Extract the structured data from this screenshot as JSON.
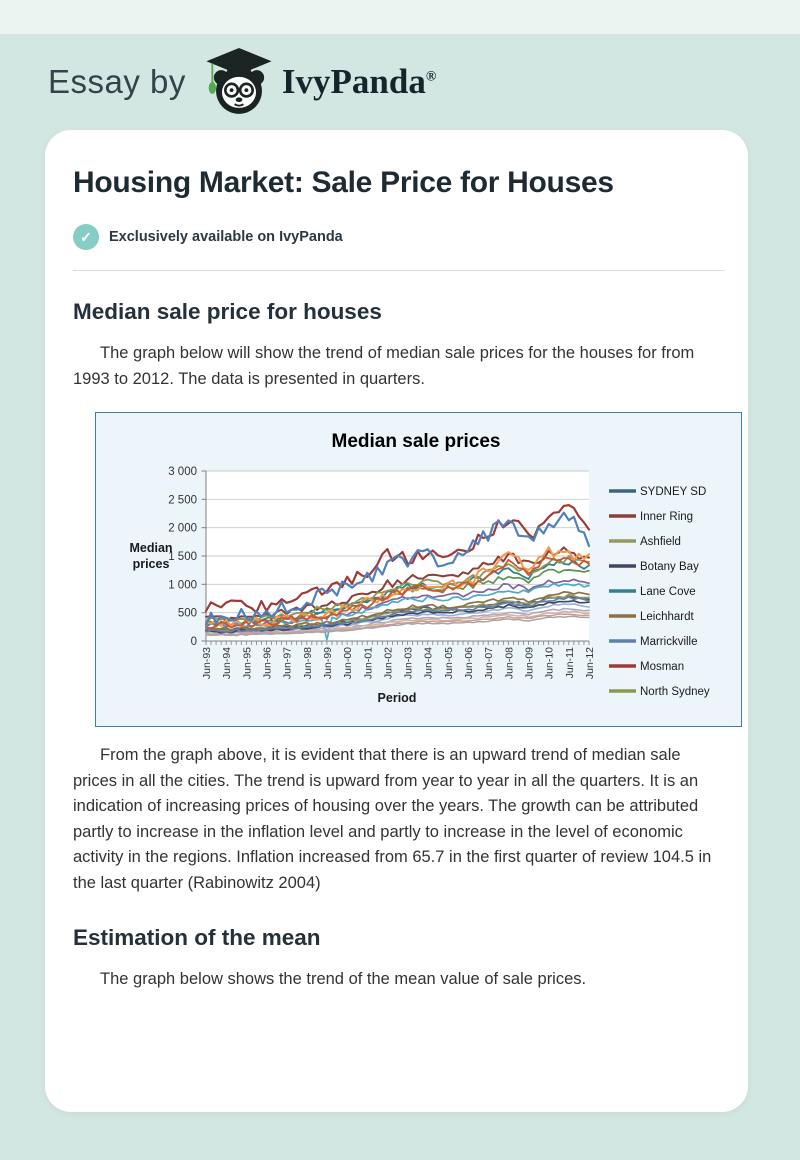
{
  "header": {
    "essay_by": "Essay by",
    "brand": "IvyPanda",
    "reg_mark": "®"
  },
  "card": {
    "title": "Housing Market: Sale Price for Houses",
    "badge_text": "Exclusively available on IvyPanda"
  },
  "sections": {
    "median": {
      "heading": "Median sale price for houses",
      "p1": "The graph below will show the trend of median sale prices for the houses for from 1993 to 2012. The data is presented in quarters."
    },
    "after_chart_p": "From the graph above, it is evident that there is an upward trend of median sale prices in all the cities. The trend is upward from year to year in all the quarters. It is an indication of increasing prices of housing over the years. The growth can be attributed partly to increase in the inflation level and partly to increase in the level of economic activity in the regions. Inflation increased from 65.7 in the first quarter of review 104.5 in the last quarter (Rabinowitz 2004)",
    "estimation": {
      "heading": "Estimation of the mean",
      "p": "The graph below shows the trend of the mean value of sale prices."
    }
  },
  "chart_data": {
    "type": "line",
    "title": "Median sale prices",
    "xlabel": "Period",
    "ylabel": "Median prices",
    "ylim": [
      0,
      3000
    ],
    "grid": true,
    "legend_position": "right",
    "y_ticks": [
      "0",
      "500",
      "1 000",
      "1 500",
      "2 000",
      "2 500",
      "3 000"
    ],
    "x_tick_labels": [
      "Jun-93",
      "Jun-94",
      "Jun-95",
      "Jun-96",
      "Jun-97",
      "Jun-98",
      "Jun-99",
      "Jun-00",
      "Jun-01",
      "Jun-02",
      "Jun-03",
      "Jun-04",
      "Jun-05",
      "Jun-06",
      "Jun-07",
      "Jun-08",
      "Jun-09",
      "Jun-10",
      "Jun-11",
      "Jun-12"
    ],
    "points_per_year": 4,
    "colors": {
      "chart_bg": "#ecf5fa",
      "plot_bg": "#ffffff",
      "border": "#3d7fa8",
      "gridline": "#c9c9c9",
      "axis": "#808080"
    },
    "series": [
      {
        "name": "SYDNEY SD",
        "color": "#3e647f",
        "width": 1.8,
        "amp": 25,
        "z": 1,
        "legend": true,
        "anchors": [
          200,
          205,
          210,
          225,
          250,
          280,
          310,
          350,
          420,
          500,
          560,
          580,
          560,
          600,
          650,
          700,
          660,
          750,
          780,
          730
        ]
      },
      {
        "name": "Inner Ring",
        "color": "#8e3f3b",
        "width": 2,
        "amp": 80,
        "z": 1,
        "legend": true,
        "anchors": [
          380,
          400,
          420,
          450,
          500,
          560,
          630,
          720,
          850,
          1000,
          1100,
          1150,
          1100,
          1200,
          1350,
          1500,
          1350,
          1550,
          1600,
          1450
        ]
      },
      {
        "name": "Ashfield",
        "color": "#97975e",
        "width": 1.7,
        "amp": 30,
        "z": 1,
        "legend": true,
        "anchors": [
          180,
          190,
          200,
          215,
          240,
          270,
          300,
          340,
          410,
          490,
          550,
          570,
          550,
          590,
          640,
          700,
          650,
          760,
          800,
          750
        ]
      },
      {
        "name": "Botany Bay",
        "color": "#45445f",
        "width": 1.7,
        "amp": 25,
        "z": 1,
        "legend": true,
        "anchors": [
          160,
          170,
          180,
          190,
          210,
          235,
          265,
          300,
          360,
          430,
          490,
          510,
          500,
          530,
          570,
          620,
          580,
          680,
          720,
          680
        ]
      },
      {
        "name": "Lane Cove",
        "color": "#34808c",
        "width": 1.8,
        "amp": 60,
        "z": 1,
        "legend": true,
        "anchors": [
          300,
          320,
          340,
          370,
          420,
          470,
          530,
          600,
          720,
          850,
          950,
          1000,
          950,
          1050,
          1150,
          1300,
          1150,
          1350,
          1400,
          1300
        ]
      },
      {
        "name": "Leichhardt",
        "color": "#8f6f46",
        "width": 1.7,
        "amp": 30,
        "z": 1,
        "legend": true,
        "anchors": [
          200,
          210,
          225,
          240,
          265,
          295,
          330,
          375,
          450,
          540,
          600,
          620,
          600,
          650,
          700,
          760,
          710,
          820,
          860,
          810
        ]
      },
      {
        "name": "Marrickville",
        "color": "#5e81a9",
        "width": 1.7,
        "amp": 25,
        "z": 1,
        "legend": true,
        "anchors": [
          170,
          180,
          190,
          205,
          225,
          250,
          280,
          320,
          385,
          460,
          520,
          540,
          530,
          560,
          600,
          660,
          620,
          720,
          760,
          720
        ]
      },
      {
        "name": "Mosman",
        "color": "#9e3b38",
        "width": 2.2,
        "amp": 120,
        "z": 2,
        "legend": true,
        "anchors": [
          600,
          620,
          600,
          640,
          700,
          780,
          900,
          1050,
          1200,
          1550,
          1450,
          1550,
          1500,
          1650,
          1900,
          2150,
          1850,
          2150,
          2350,
          1900
        ]
      },
      {
        "name": "North Sydney",
        "color": "#8b9751",
        "width": 1.8,
        "amp": 60,
        "z": 1,
        "legend": true,
        "anchors": [
          350,
          370,
          390,
          420,
          470,
          520,
          580,
          660,
          780,
          900,
          1000,
          1050,
          1000,
          1100,
          1200,
          1350,
          1200,
          1400,
          1450,
          1350
        ]
      },
      {
        "name": "",
        "color": "#4f81bd",
        "width": 2.2,
        "amp": 140,
        "z": 2,
        "legend": false,
        "anchors": [
          420,
          450,
          480,
          520,
          600,
          700,
          820,
          950,
          1100,
          1300,
          1450,
          1500,
          1400,
          1700,
          1900,
          2250,
          1750,
          2100,
          2150,
          1800
        ]
      },
      {
        "name": "",
        "color": "#f79646",
        "width": 2,
        "amp": 90,
        "z": 1,
        "legend": false,
        "anchors": [
          280,
          300,
          320,
          350,
          390,
          430,
          480,
          560,
          680,
          820,
          950,
          1000,
          980,
          1050,
          1250,
          1500,
          1300,
          1600,
          1500,
          1450
        ]
      },
      {
        "name": "",
        "color": "#d0552f",
        "width": 1.8,
        "amp": 70,
        "z": 1,
        "legend": false,
        "anchors": [
          260,
          278,
          296,
          322,
          360,
          402,
          452,
          528,
          640,
          772,
          892,
          940,
          920,
          988,
          1172,
          1408,
          1220,
          1500,
          1408,
          1360
        ]
      },
      {
        "name": "",
        "color": "#8064a2",
        "width": 1.7,
        "amp": 50,
        "z": 0,
        "legend": false,
        "anchors": [
          260,
          275,
          290,
          310,
          345,
          385,
          430,
          490,
          590,
          700,
          780,
          810,
          790,
          840,
          900,
          980,
          920,
          1050,
          1100,
          1030
        ]
      },
      {
        "name": "",
        "color": "#4bacc6",
        "width": 1.7,
        "amp": 45,
        "z": 0,
        "legend": false,
        "dips": [
          [
            24,
            25
          ]
        ],
        "anchors": [
          240,
          255,
          270,
          290,
          320,
          355,
          395,
          450,
          540,
          640,
          720,
          750,
          730,
          780,
          840,
          910,
          860,
          980,
          1020,
          960
        ]
      },
      {
        "name": "",
        "color": "#5d9150",
        "width": 1.7,
        "amp": 55,
        "z": 0,
        "legend": false,
        "anchors": [
          300,
          318,
          335,
          360,
          400,
          445,
          500,
          570,
          680,
          810,
          900,
          940,
          910,
          970,
          1050,
          1140,
          1070,
          1220,
          1270,
          1190
        ]
      },
      {
        "name": "",
        "color": "#95b3d7",
        "width": 1.6,
        "amp": 20,
        "z": 0,
        "legend": false,
        "anchors": [
          150,
          158,
          167,
          180,
          198,
          220,
          246,
          280,
          335,
          400,
          450,
          470,
          460,
          490,
          525,
          575,
          540,
          620,
          650,
          615
        ]
      },
      {
        "name": "",
        "color": "#b3a2c7",
        "width": 1.6,
        "amp": 18,
        "z": 0,
        "legend": false,
        "anchors": [
          130,
          137,
          145,
          156,
          172,
          191,
          214,
          243,
          292,
          348,
          392,
          409,
          400,
          426,
          457,
          500,
          470,
          540,
          566,
          535
        ]
      },
      {
        "name": "",
        "color": "#c4bd97",
        "width": 1.6,
        "amp": 15,
        "z": 0,
        "legend": false,
        "dips": [
          [
            4,
            100
          ],
          [
            6,
            90
          ]
        ],
        "anchors": [
          120,
          126,
          133,
          143,
          158,
          176,
          197,
          224,
          269,
          320,
          361,
          376,
          368,
          392,
          420,
          460,
          432,
          497,
          520,
          492
        ]
      },
      {
        "name": "",
        "color": "#d99694",
        "width": 1.5,
        "amp": 12,
        "z": 0,
        "legend": false,
        "anchors": [
          110,
          116,
          122,
          131,
          145,
          161,
          180,
          205,
          246,
          293,
          330,
          344,
          337,
          359,
          385,
          421,
          396,
          455,
          477,
          451
        ]
      },
      {
        "name": "",
        "color": "#a6a6a6",
        "width": 1.5,
        "amp": 10,
        "z": 0,
        "legend": false,
        "anchors": [
          100,
          105,
          111,
          119,
          132,
          147,
          164,
          187,
          224,
          267,
          301,
          314,
          307,
          327,
          350,
          384,
          361,
          415,
          434,
          411
        ]
      }
    ]
  }
}
